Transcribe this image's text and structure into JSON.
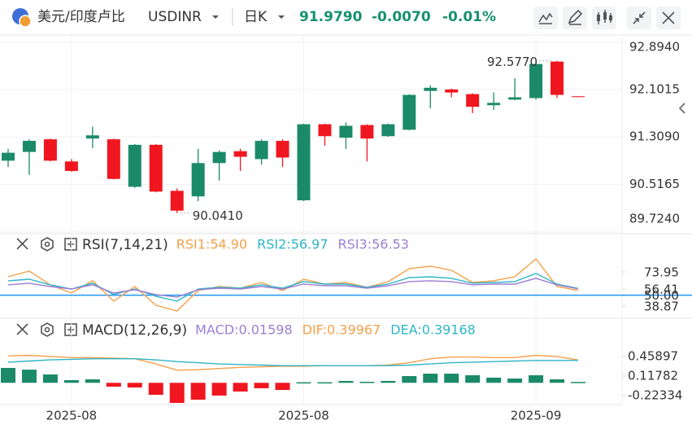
{
  "header": {
    "title": "美元/印度卢比",
    "symbol": "USDINR",
    "period": "日K",
    "price": "91.9790",
    "change": "-0.0070",
    "change_pct": "-0.01%"
  },
  "chart_data": [
    {
      "type": "candlestick",
      "categories": [
        null,
        null,
        null,
        "2025-08",
        null,
        null,
        null,
        null,
        null,
        null,
        null,
        null,
        null,
        null,
        "2025-08",
        null,
        null,
        null,
        null,
        null,
        null,
        null,
        null,
        null,
        null,
        "2025-09",
        null,
        null
      ],
      "open": [
        90.913,
        91.058,
        91.269,
        90.9,
        91.282,
        91.269,
        90.477,
        91.177,
        90.41,
        90.318,
        90.873,
        91.071,
        90.939,
        91.243,
        90.252,
        91.52,
        91.296,
        91.507,
        91.322,
        91.428,
        92.075,
        92.1,
        92.022,
        91.837,
        91.93,
        91.956,
        92.564,
        91.986
      ],
      "high": [
        91.11,
        91.269,
        91.282,
        90.939,
        91.48,
        91.28,
        91.19,
        91.19,
        90.45,
        91.11,
        91.084,
        91.11,
        91.269,
        91.269,
        91.53,
        91.53,
        91.547,
        91.52,
        91.53,
        92.02,
        92.168,
        92.115,
        92.035,
        92.049,
        92.286,
        92.564,
        92.577,
        91.99
      ],
      "low": [
        90.807,
        90.675,
        90.9,
        90.728,
        91.124,
        90.6,
        90.46,
        90.385,
        90.041,
        90.239,
        90.582,
        90.741,
        90.847,
        90.807,
        90.24,
        91.164,
        91.11,
        90.9,
        91.31,
        91.42,
        91.784,
        91.969,
        91.705,
        91.758,
        91.92,
        91.93,
        91.956,
        91.975
      ],
      "close": [
        91.045,
        91.243,
        90.913,
        90.741,
        91.335,
        90.609,
        91.177,
        90.397,
        90.08,
        90.873,
        91.058,
        90.978,
        91.243,
        90.965,
        91.52,
        91.322,
        91.494,
        91.282,
        91.52,
        92.009,
        92.128,
        92.049,
        91.811,
        91.877,
        91.969,
        92.524,
        92.009,
        91.979
      ],
      "up_color": "#1b8a68",
      "down_color": "#f0161f",
      "ylim": [
        89.724,
        92.98
      ],
      "yticks": [
        {
          "value": 92.894,
          "label": "92.8940"
        },
        {
          "value": 92.1015,
          "label": "92.1015"
        },
        {
          "value": 91.309,
          "label": "91.3090"
        },
        {
          "value": 90.5165,
          "label": "90.5165"
        },
        {
          "value": 89.724,
          "label": "89.7240"
        }
      ],
      "grid": true,
      "annotations": [
        {
          "label": "92.5770",
          "value": 92.577
        },
        {
          "label": "90.0410",
          "value": 90.041
        }
      ]
    },
    {
      "type": "line",
      "title": "RSI(7,14,21)",
      "series": [
        {
          "name": "RSI1:54.90",
          "color": "#f5a04a",
          "values": [
            68.9,
            74.8,
            60.6,
            52.2,
            64.8,
            43.9,
            58.9,
            39.7,
            33.8,
            54.7,
            58.9,
            57.2,
            63.1,
            54.7,
            66.4,
            61.4,
            63.1,
            58.1,
            63.9,
            77.3,
            79.8,
            75.6,
            63.1,
            64.8,
            69.0,
            87.3,
            58.9,
            54.9
          ]
        },
        {
          "name": "RSI2:56.97",
          "color": "#2fb5c6",
          "values": [
            64.8,
            66.4,
            60.6,
            56.4,
            62.3,
            50.6,
            56.4,
            48.9,
            43.9,
            56.4,
            58.1,
            57.2,
            60.6,
            57.2,
            64.0,
            61.4,
            61.4,
            58.1,
            61.4,
            68.1,
            68.9,
            67.3,
            62.3,
            63.1,
            64.0,
            72.3,
            61.4,
            56.97
          ]
        },
        {
          "name": "RSI3:56.53",
          "color": "#9b7fd4",
          "values": [
            60.6,
            62.3,
            58.9,
            56.4,
            60.6,
            52.2,
            55.6,
            50.6,
            48.1,
            55.6,
            57.2,
            56.4,
            58.9,
            56.4,
            61.4,
            59.7,
            59.7,
            57.2,
            59.7,
            64.0,
            64.8,
            64.0,
            60.6,
            61.4,
            61.4,
            67.3,
            60.6,
            56.53
          ]
        }
      ],
      "ylim": [
        28.8,
        110.7
      ],
      "yticks": [
        73.95,
        56.41,
        {
          "value": 50,
          "label": "50.00"
        },
        38.87
      ],
      "reference_line": 50,
      "reference_color": "#2196f3"
    },
    {
      "type": "macd",
      "title": "MACD(12,26,9)",
      "series": [
        {
          "name": "MACD:0.01598",
          "color": "#9b7fd4",
          "type": "bar",
          "values": [
            0.26,
            0.23,
            0.146,
            0.047,
            0.061,
            -0.067,
            -0.081,
            -0.209,
            -0.351,
            -0.294,
            -0.223,
            -0.152,
            -0.095,
            -0.124,
            0.01,
            0.01,
            0.033,
            0.018,
            0.033,
            0.118,
            0.16,
            0.16,
            0.132,
            0.09,
            0.075,
            0.132,
            0.061,
            0.01598
          ]
        },
        {
          "name": "DIF:0.39967",
          "color": "#f5a04a",
          "type": "line",
          "values": [
            0.47,
            0.48,
            0.46,
            0.44,
            0.44,
            0.43,
            0.42,
            0.33,
            0.22,
            0.23,
            0.25,
            0.27,
            0.28,
            0.29,
            0.29,
            0.3,
            0.3,
            0.3,
            0.31,
            0.35,
            0.42,
            0.45,
            0.45,
            0.44,
            0.44,
            0.48,
            0.46,
            0.39967
          ]
        },
        {
          "name": "DEA:0.39168",
          "color": "#2fb5c6",
          "type": "line",
          "values": [
            0.36,
            0.38,
            0.4,
            0.41,
            0.42,
            0.42,
            0.42,
            0.4,
            0.37,
            0.35,
            0.33,
            0.32,
            0.31,
            0.3,
            0.3,
            0.3,
            0.3,
            0.3,
            0.3,
            0.31,
            0.33,
            0.35,
            0.36,
            0.37,
            0.38,
            0.39,
            0.39,
            0.39168
          ]
        }
      ],
      "up_color": "#1b8a68",
      "down_color": "#f0161f",
      "ylim": [
        -0.38,
        1.07
      ],
      "yticks": [
        0.45897,
        0.11782,
        -0.22334
      ]
    }
  ]
}
